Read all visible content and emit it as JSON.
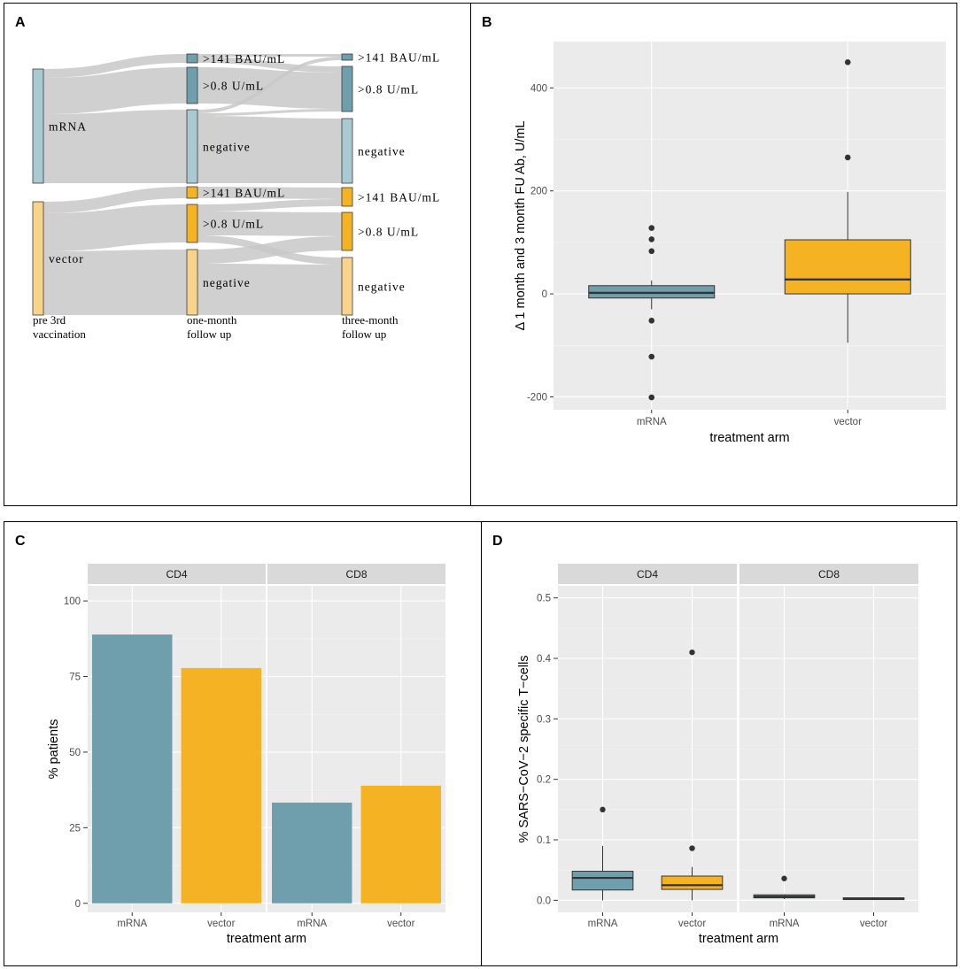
{
  "colors": {
    "mrna": "#6f9fad",
    "vector": "#f5b323",
    "panel_bg": "#ebebeb",
    "grid": "#ffffff",
    "flow": "#c8c8c8",
    "strip": "#d9d9d9"
  },
  "panelA": {
    "label": "A",
    "stages": [
      "pre 3rd vaccination",
      "one-month follow up",
      "three-month follow up"
    ],
    "stage_label_lines": [
      [
        "pre 3rd",
        "vaccination"
      ],
      [
        "one-month",
        "follow up"
      ],
      [
        "three-month",
        "follow up"
      ]
    ],
    "groups": [
      "mRNA",
      "vector"
    ],
    "node_labels": {
      "high": ">141 BAU/mL",
      "mid": ">0.8 U/mL",
      "neg": "negative"
    }
  },
  "panelB": {
    "label": "B"
  },
  "panelC": {
    "label": "C"
  },
  "panelD": {
    "label": "D"
  },
  "chart_data": [
    {
      "panel": "A",
      "type": "sankey",
      "title": "",
      "stages": [
        "pre 3rd vaccination",
        "one-month follow up",
        "three-month follow up"
      ],
      "nodes": [
        {
          "stage": 0,
          "label": "mRNA",
          "group": "mRNA",
          "size": 10
        },
        {
          "stage": 0,
          "label": "vector",
          "group": "vector",
          "size": 10
        },
        {
          "stage": 1,
          "label": ">141 BAU/mL",
          "group": "mRNA",
          "size": 1
        },
        {
          "stage": 1,
          "label": ">0.8 U/mL",
          "group": "mRNA",
          "size": 4
        },
        {
          "stage": 1,
          "label": "negative",
          "group": "mRNA",
          "size": 5
        },
        {
          "stage": 1,
          "label": ">141 BAU/mL",
          "group": "vector",
          "size": 1
        },
        {
          "stage": 1,
          "label": ">0.8 U/mL",
          "group": "vector",
          "size": 3
        },
        {
          "stage": 1,
          "label": "negative",
          "group": "vector",
          "size": 6
        },
        {
          "stage": 2,
          "label": ">141 BAU/mL",
          "group": "mRNA",
          "size": 0.5
        },
        {
          "stage": 2,
          "label": ">0.8 U/mL",
          "group": "mRNA",
          "size": 3.5
        },
        {
          "stage": 2,
          "label": "negative",
          "group": "mRNA",
          "size": 6
        },
        {
          "stage": 2,
          "label": ">141 BAU/mL",
          "group": "vector",
          "size": 1.5
        },
        {
          "stage": 2,
          "label": ">0.8 U/mL",
          "group": "vector",
          "size": 3.5
        },
        {
          "stage": 2,
          "label": "negative",
          "group": "vector",
          "size": 5
        }
      ]
    },
    {
      "panel": "B",
      "type": "box",
      "title": "",
      "categories": [
        "mRNA",
        "vector"
      ],
      "xlabel": "treatment arm",
      "ylabel": "Δ 1 month and 3 month FU Ab, U/mL",
      "ylim": [
        -225,
        490
      ],
      "yticks": [
        -200,
        0,
        200,
        400
      ],
      "boxes": [
        {
          "name": "mRNA",
          "q1": -8,
          "median": 2,
          "q3": 16,
          "lower_whisker": -30,
          "upper_whisker": 26,
          "outliers": [
            128,
            106,
            83,
            -52,
            -122,
            -201
          ]
        },
        {
          "name": "vector",
          "q1": 0,
          "median": 28,
          "q3": 105,
          "lower_whisker": -95,
          "upper_whisker": 198,
          "outliers": [
            450,
            265
          ]
        }
      ]
    },
    {
      "panel": "C",
      "type": "bar",
      "title": "",
      "facets": [
        "CD4",
        "CD8"
      ],
      "categories": [
        "mRNA",
        "vector"
      ],
      "xlabel": "treatment arm",
      "ylabel": "% patients",
      "ylim": [
        -3,
        105
      ],
      "yticks": [
        0,
        25,
        50,
        75,
        100
      ],
      "series": [
        {
          "name": "CD4",
          "values": [
            88.9,
            77.8
          ]
        },
        {
          "name": "CD8",
          "values": [
            33.3,
            38.9
          ]
        }
      ]
    },
    {
      "panel": "D",
      "type": "box",
      "title": "",
      "facets": [
        "CD4",
        "CD8"
      ],
      "categories": [
        "mRNA",
        "vector"
      ],
      "xlabel": "treatment arm",
      "ylabel": "% SARS−CoV−2 specific T−cells",
      "ylim": [
        -0.02,
        0.52
      ],
      "yticks": [
        0.0,
        0.1,
        0.2,
        0.3,
        0.4,
        0.5
      ],
      "boxes": [
        {
          "facet": "CD4",
          "name": "mRNA",
          "q1": 0.017,
          "median": 0.037,
          "q3": 0.048,
          "lower_whisker": 0.0,
          "upper_whisker": 0.09,
          "outliers": [
            0.15
          ]
        },
        {
          "facet": "CD4",
          "name": "vector",
          "q1": 0.018,
          "median": 0.025,
          "q3": 0.04,
          "lower_whisker": 0.0,
          "upper_whisker": 0.055,
          "outliers": [
            0.41,
            0.086
          ]
        },
        {
          "facet": "CD8",
          "name": "mRNA",
          "q1": 0.004,
          "median": 0.006,
          "q3": 0.009,
          "lower_whisker": 0.002,
          "upper_whisker": 0.01,
          "outliers": [
            0.036
          ]
        },
        {
          "facet": "CD8",
          "name": "vector",
          "q1": 0.002,
          "median": 0.003,
          "q3": 0.004,
          "lower_whisker": 0.001,
          "upper_whisker": 0.005,
          "outliers": []
        }
      ]
    }
  ]
}
